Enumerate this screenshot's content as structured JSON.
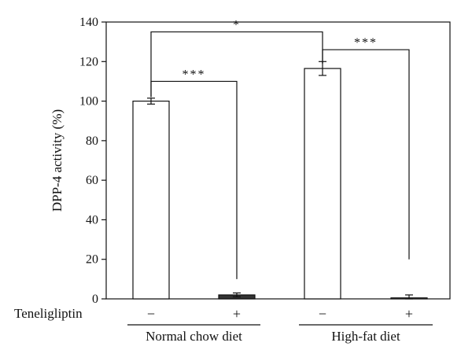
{
  "chart_data": {
    "type": "bar",
    "ylabel": "DPP-4 activity (%)",
    "ylim": [
      0,
      140
    ],
    "yticks": [
      0,
      20,
      40,
      60,
      80,
      100,
      120,
      140
    ],
    "factor_label": "Teneligliptin",
    "groups": [
      "Normal chow diet",
      "High-fat diet"
    ],
    "bars": [
      {
        "group": "Normal chow diet",
        "teneligliptin": "−",
        "value": 100,
        "error": 1.5,
        "fill": "#ffffff"
      },
      {
        "group": "Normal chow diet",
        "teneligliptin": "+",
        "value": 2,
        "error": 1,
        "fill": "#333333"
      },
      {
        "group": "High-fat diet",
        "teneligliptin": "−",
        "value": 116.5,
        "error": 3.5,
        "fill": "#ffffff"
      },
      {
        "group": "High-fat diet",
        "teneligliptin": "+",
        "value": 0.5,
        "error": 1.5,
        "fill": "#ffffff"
      }
    ],
    "significance": [
      {
        "from": 0,
        "to": 2,
        "label": "*",
        "level": 135,
        "left_end": 102,
        "right_end": 119
      },
      {
        "from": 0,
        "to": 1,
        "label": "***",
        "level": 110,
        "left_end": 102,
        "right_end": 10
      },
      {
        "from": 2,
        "to": 3,
        "label": "***",
        "level": 126,
        "left_end": 119,
        "right_end": 20
      }
    ]
  }
}
